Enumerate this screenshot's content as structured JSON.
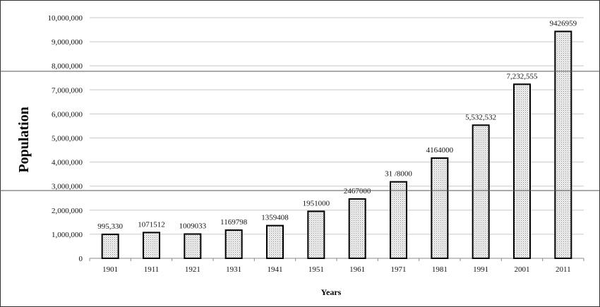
{
  "chart_data": {
    "type": "bar",
    "categories": [
      "1901",
      "1911",
      "1921",
      "1931",
      "1941",
      "1951",
      "1961",
      "1971",
      "1981",
      "1991",
      "2001",
      "2011"
    ],
    "values": [
      995330,
      1071512,
      1009033,
      1169798,
      1359408,
      1951000,
      2467000,
      3178000,
      4164000,
      5532532,
      7232555,
      9426959
    ],
    "data_labels": [
      "995,330",
      "1071512",
      "1009033",
      "1169798",
      "1359408",
      "1951000",
      "2467000",
      "31 /8000",
      "4164000",
      "5,532,532",
      "7,232,555",
      "9426959"
    ],
    "xlabel": "Years",
    "ylabel": "Population",
    "ylim": [
      0,
      10000000
    ],
    "yticks": [
      0,
      1000000,
      2000000,
      3000000,
      4000000,
      5000000,
      6000000,
      7000000,
      8000000,
      9000000,
      10000000
    ],
    "ytick_labels": [
      "0",
      "1,000,000",
      "2,000,000",
      "3,000,000",
      "4,000,000",
      "5,000,000",
      "6,000,000",
      "7,000,000",
      "8,000,000",
      "9,000,000",
      "10,000,000"
    ],
    "grid": true,
    "legend": "none"
  }
}
